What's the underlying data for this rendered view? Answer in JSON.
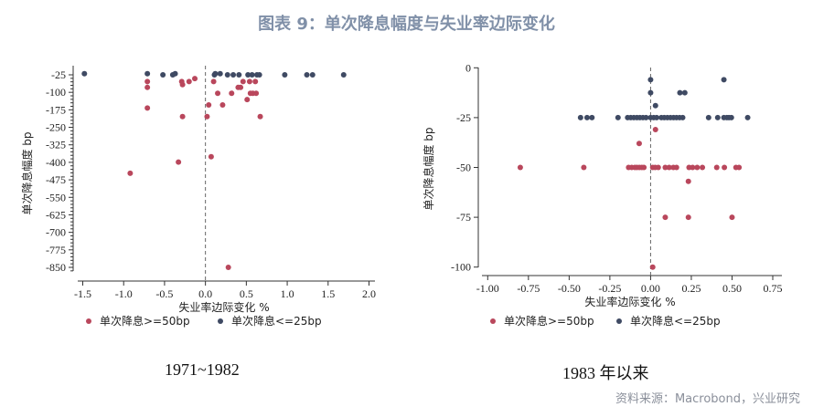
{
  "title": "图表 9：单次降息幅度与失业率边际变化",
  "source": "资料来源：Macrobond，兴业研究",
  "colors": {
    "large_cut": "#b9475c",
    "small_cut": "#3f4a63",
    "title": "#8090a8"
  },
  "chart_data": [
    {
      "type": "scatter",
      "caption": "1971~1982",
      "xlabel": "失业率边际变化 %",
      "ylabel": "单次降息幅度 bp",
      "xlim": [
        -1.6,
        2.1
      ],
      "ylim": [
        -870,
        0
      ],
      "xticks": [
        "-1.5",
        "-1.0",
        "-0.5",
        "0.0",
        "0.5",
        "1.0",
        "1.5",
        "2.0"
      ],
      "yticks": [
        "-25",
        "-100",
        "-175",
        "-250",
        "-325",
        "-400",
        "-475",
        "-550",
        "-625",
        "-700",
        "-775",
        "-850"
      ],
      "reference_line_x": 0,
      "grid": false,
      "legend_position": "bottom",
      "series": [
        {
          "name": "单次降息>=50bp",
          "points": [
            [
              -0.71,
              -54
            ],
            [
              -0.71,
              -79
            ],
            [
              -0.71,
              -167
            ],
            [
              -0.29,
              -54
            ],
            [
              -0.28,
              -67
            ],
            [
              -0.2,
              -54
            ],
            [
              -0.13,
              -41
            ],
            [
              0.1,
              -54
            ],
            [
              0.15,
              -104
            ],
            [
              0.32,
              -104
            ],
            [
              0.21,
              -154
            ],
            [
              0.4,
              -79
            ],
            [
              0.43,
              -79
            ],
            [
              0.46,
              -54
            ],
            [
              0.54,
              -54
            ],
            [
              0.61,
              -54
            ],
            [
              0.55,
              -104
            ],
            [
              0.58,
              -104
            ],
            [
              0.62,
              -104
            ],
            [
              0.51,
              -131
            ],
            [
              0.04,
              -154
            ],
            [
              0.02,
              -204
            ],
            [
              -0.28,
              -204
            ],
            [
              0.67,
              -204
            ],
            [
              0.07,
              -376
            ],
            [
              -0.33,
              -399
            ],
            [
              -0.92,
              -447
            ],
            [
              0.28,
              -850
            ]
          ]
        },
        {
          "name": "单次降息<=25bp",
          "points": [
            [
              -1.48,
              -20
            ],
            [
              -0.71,
              -20
            ],
            [
              -0.52,
              -25
            ],
            [
              -0.4,
              -25
            ],
            [
              -0.37,
              -20
            ],
            [
              0.11,
              -25
            ],
            [
              0.12,
              -20
            ],
            [
              0.18,
              -20
            ],
            [
              0.27,
              -25
            ],
            [
              0.34,
              -25
            ],
            [
              0.41,
              -25
            ],
            [
              0.52,
              -25
            ],
            [
              0.57,
              -25
            ],
            [
              0.63,
              -25
            ],
            [
              0.66,
              -25
            ],
            [
              0.97,
              -25
            ],
            [
              1.24,
              -25
            ],
            [
              1.31,
              -25
            ],
            [
              1.69,
              -25
            ]
          ]
        }
      ]
    },
    {
      "type": "scatter",
      "caption": "1983 年以来",
      "xlabel": "失业率边际变化 %",
      "ylabel": "单次降息幅度 bp",
      "xlim": [
        -1.07,
        0.8
      ],
      "ylim": [
        -103,
        0
      ],
      "xticks": [
        "-1.00",
        "-0.75",
        "-0.50",
        "-0.25",
        "0.00",
        "0.25",
        "0.50",
        "0.75"
      ],
      "yticks": [
        "0",
        "-25",
        "-50",
        "-75",
        "-100"
      ],
      "reference_line_x": 0,
      "grid": false,
      "legend_position": "bottom",
      "series": [
        {
          "name": "单次降息>=50bp",
          "points": [
            [
              0.03,
              -31
            ],
            [
              -0.07,
              -38
            ],
            [
              -0.8,
              -50
            ],
            [
              -0.41,
              -50
            ],
            [
              -0.135,
              -50
            ],
            [
              -0.116,
              -50
            ],
            [
              -0.097,
              -50
            ],
            [
              -0.084,
              -50
            ],
            [
              -0.069,
              -50
            ],
            [
              -0.054,
              -50
            ],
            [
              -0.041,
              -50
            ],
            [
              0.013,
              -50
            ],
            [
              0.028,
              -50
            ],
            [
              0.047,
              -50
            ],
            [
              0.09,
              -50
            ],
            [
              0.114,
              -50
            ],
            [
              0.14,
              -50
            ],
            [
              0.159,
              -50
            ],
            [
              0.236,
              -50
            ],
            [
              0.258,
              -50
            ],
            [
              0.286,
              -50
            ],
            [
              0.318,
              -50
            ],
            [
              0.406,
              -50
            ],
            [
              0.453,
              -50
            ],
            [
              0.524,
              -50
            ],
            [
              0.543,
              -50
            ],
            [
              0.232,
              -57
            ],
            [
              0.09,
              -75
            ],
            [
              0.232,
              -75
            ],
            [
              0.5,
              -75
            ],
            [
              0.013,
              -100
            ]
          ]
        },
        {
          "name": "单次降息<=25bp",
          "points": [
            [
              0.0,
              -6
            ],
            [
              0.0,
              -12.5
            ],
            [
              0.03,
              -19
            ],
            [
              0.18,
              -12.5
            ],
            [
              0.21,
              -12.5
            ],
            [
              0.45,
              -6
            ],
            [
              -0.43,
              -25
            ],
            [
              -0.39,
              -25
            ],
            [
              -0.36,
              -25
            ],
            [
              -0.2,
              -25
            ],
            [
              -0.141,
              -25
            ],
            [
              -0.122,
              -25
            ],
            [
              -0.103,
              -25
            ],
            [
              -0.084,
              -25
            ],
            [
              -0.066,
              -25
            ],
            [
              -0.047,
              -25
            ],
            [
              -0.028,
              -25
            ],
            [
              0.0,
              -25
            ],
            [
              0.019,
              -25
            ],
            [
              0.037,
              -25
            ],
            [
              0.066,
              -25
            ],
            [
              0.084,
              -25
            ],
            [
              0.103,
              -25
            ],
            [
              0.122,
              -25
            ],
            [
              0.141,
              -25
            ],
            [
              0.159,
              -25
            ],
            [
              0.178,
              -25
            ],
            [
              0.197,
              -25
            ],
            [
              0.356,
              -25
            ],
            [
              0.412,
              -25
            ],
            [
              0.45,
              -25
            ],
            [
              0.468,
              -25
            ],
            [
              0.481,
              -25
            ],
            [
              0.496,
              -25
            ],
            [
              0.596,
              -25
            ]
          ]
        }
      ]
    }
  ]
}
